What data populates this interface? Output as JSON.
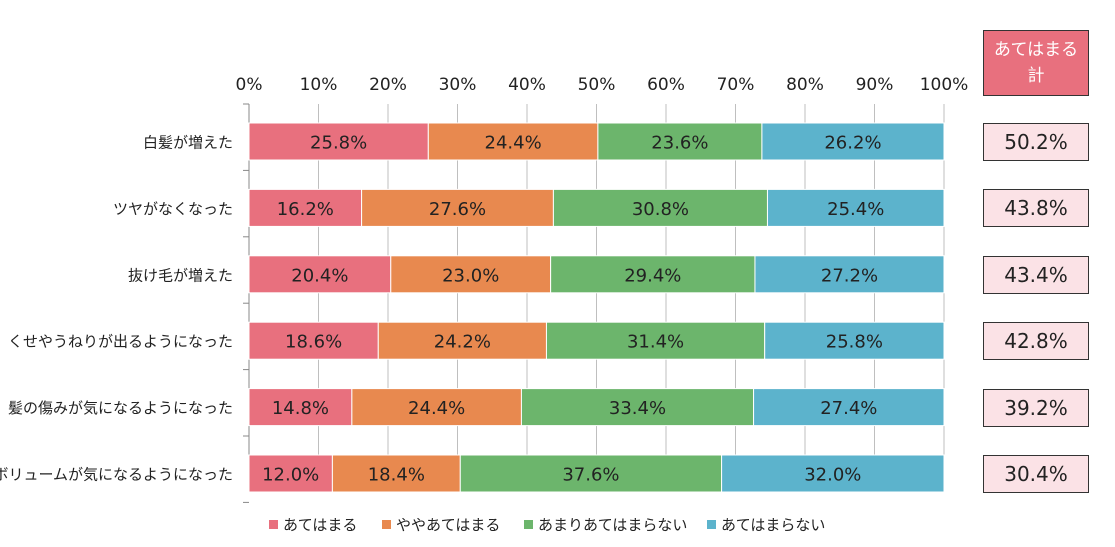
{
  "colors": {
    "series": [
      "#e8707e",
      "#e8894f",
      "#6cb56c",
      "#5cb3cc"
    ],
    "total_header_bg": "#e8707e",
    "total_box_bg": "#fbe2e6",
    "grid": "#bfbfbf"
  },
  "total_header": "あてはまる計",
  "totals": [
    "50.2%",
    "43.8%",
    "43.4%",
    "42.8%",
    "39.2%",
    "30.4%"
  ],
  "chart_data": {
    "type": "bar",
    "orientation": "horizontal",
    "stacked": true,
    "xlim": [
      0,
      100
    ],
    "x_ticks": [
      "0%",
      "10%",
      "20%",
      "30%",
      "40%",
      "50%",
      "60%",
      "70%",
      "80%",
      "90%",
      "100%"
    ],
    "categories": [
      "白髪が増えた",
      "ツヤがなくなった",
      "抜け毛が増えた",
      "くせやうねりが出るようになった",
      "髪の傷みが気になるようになった",
      "ボリュームが気になるようになった"
    ],
    "series": [
      {
        "name": "あてはまる",
        "values": [
          25.8,
          16.2,
          20.4,
          18.6,
          14.8,
          12.0
        ]
      },
      {
        "name": "ややあてはまる",
        "values": [
          24.4,
          27.6,
          23.0,
          24.2,
          24.4,
          18.4
        ]
      },
      {
        "name": "あまりあてはまらない",
        "values": [
          23.6,
          30.8,
          29.4,
          31.4,
          33.4,
          37.6
        ]
      },
      {
        "name": "あてはまらない",
        "values": [
          26.2,
          25.4,
          27.2,
          25.8,
          27.4,
          32.0
        ]
      }
    ],
    "legend_position": "bottom",
    "grid": true
  }
}
